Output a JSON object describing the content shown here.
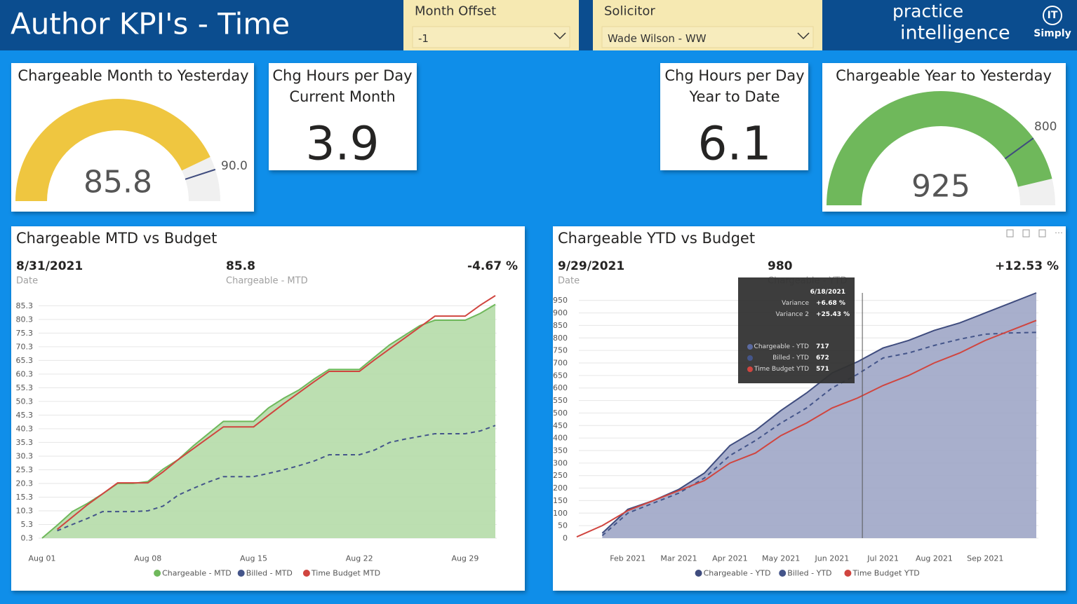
{
  "header": {
    "title": "Author KPI's - Time",
    "logo_line1": "practice",
    "logo_line2": "intelligence",
    "badge_top": "IT",
    "badge_bottom": "Simply"
  },
  "slicers": [
    {
      "label": "Month Offset",
      "value": "-1"
    },
    {
      "label": "Solicitor",
      "value": "Wade Wilson - WW"
    }
  ],
  "cards": [
    {
      "title_lines": [
        "Chg Hours per Day",
        "Current Month"
      ],
      "value": 3.9
    },
    {
      "title_lines": [
        "Chg Hours per Day",
        "Year to Date"
      ],
      "value": 6.1
    }
  ],
  "chart_data": [
    {
      "type": "gauge",
      "title": "Chargeable Month to Yesterday",
      "value": 85.8,
      "target": 90,
      "target_label": "90.0",
      "range": [
        0,
        100
      ],
      "color": "#efc640"
    },
    {
      "type": "gauge",
      "title": "Chargeable Year to Yesterday",
      "value": 925,
      "target": 800,
      "target_label": "800",
      "range": [
        0,
        1000
      ],
      "color": "#6fb85b"
    },
    {
      "type": "line",
      "title": "Chargeable MTD vs Budget",
      "kpi": {
        "date": "8/31/2021",
        "date_label": "Date",
        "value": 85.8,
        "value_label": "Chargeable - MTD",
        "change": "-4.67 %"
      },
      "x": [
        1,
        2,
        3,
        4,
        5,
        6,
        7,
        8,
        9,
        10,
        11,
        12,
        13,
        14,
        15,
        16,
        17,
        18,
        19,
        20,
        21,
        22,
        23,
        24,
        25,
        26,
        27,
        28,
        29,
        30,
        31
      ],
      "xlim": [
        1,
        31
      ],
      "xticks": [
        {
          "value": 1,
          "label": "Aug 01"
        },
        {
          "value": 8,
          "label": "Aug 08"
        },
        {
          "value": 15,
          "label": "Aug 15"
        },
        {
          "value": 22,
          "label": "Aug 22"
        },
        {
          "value": 29,
          "label": "Aug 29"
        }
      ],
      "ylim": [
        0.3,
        90
      ],
      "yticks": [
        0.3,
        5.3,
        10.3,
        15.3,
        20.3,
        25.3,
        30.3,
        35.3,
        40.3,
        45.3,
        50.3,
        55.3,
        60.3,
        65.3,
        70.3,
        75.3,
        80.3,
        85.3
      ],
      "grid": true,
      "series": [
        {
          "name": "Chargeable - MTD",
          "color": "#6fb85b",
          "fill": "#b5dba8",
          "values": [
            0.3,
            5,
            10,
            13,
            16.5,
            20.3,
            20.3,
            21,
            25.5,
            29,
            34,
            38.5,
            43,
            43,
            43,
            48,
            51.5,
            54.5,
            58.5,
            62,
            62,
            62,
            66.5,
            71,
            74.5,
            78,
            80,
            80,
            80,
            82.5,
            85.8
          ]
        },
        {
          "name": "Billed - MTD",
          "color": "#44558a",
          "dashed": true,
          "values": [
            null,
            3,
            5.3,
            7.5,
            10,
            10,
            10,
            10.3,
            12,
            16,
            18.5,
            20.8,
            22.8,
            22.8,
            22.8,
            24,
            25.3,
            26.8,
            28.5,
            30.8,
            30.8,
            30.8,
            32.5,
            35.3,
            36.5,
            37.5,
            38.5,
            38.5,
            38.5,
            39.5,
            41.5
          ]
        },
        {
          "name": "Time Budget MTD",
          "color": "#d0453f",
          "values": [
            null,
            3.5,
            8,
            12.5,
            16.5,
            20.5,
            20.5,
            20.5,
            24.5,
            29,
            33,
            37,
            41,
            41,
            41,
            45.3,
            49.5,
            53.5,
            57.5,
            61.3,
            61.3,
            61.3,
            65.5,
            69.5,
            73.5,
            77.5,
            81.5,
            81.5,
            81.5,
            85.5,
            89
          ]
        }
      ]
    },
    {
      "type": "line",
      "title": "Chargeable YTD vs Budget",
      "kpi": {
        "date": "9/29/2021",
        "date_label": "Date",
        "value": 980,
        "value_label": "Chargeable - YTD",
        "change": "+12.53 %"
      },
      "categories": [
        null,
        null,
        "Feb 2021",
        null,
        "Mar 2021",
        null,
        "Apr 2021",
        null,
        "May 2021",
        null,
        "Jun 2021",
        null,
        "Jul 2021",
        null,
        "Aug 2021",
        null,
        "Sep 2021",
        null,
        null
      ],
      "ylim": [
        0,
        980
      ],
      "yticks": [
        0,
        50,
        100,
        150,
        200,
        250,
        300,
        350,
        400,
        450,
        500,
        550,
        600,
        650,
        700,
        750,
        800,
        850,
        900,
        950
      ],
      "grid": true,
      "series": [
        {
          "name": "Chargeable - YTD",
          "color": "#3f4c7e",
          "fill": "#9ea6c6",
          "values": [
            null,
            20,
            115,
            150,
            195,
            260,
            370,
            430,
            510,
            580,
            660,
            705,
            760,
            790,
            830,
            860,
            900,
            940,
            980
          ]
        },
        {
          "name": "Billed - YTD",
          "color": "#44558a",
          "dashed": true,
          "values": [
            null,
            10,
            100,
            140,
            180,
            240,
            330,
            390,
            460,
            520,
            600,
            655,
            720,
            740,
            770,
            795,
            815,
            820,
            822
          ]
        },
        {
          "name": "Time Budget YTD",
          "color": "#d0453f",
          "values": [
            5,
            50,
            110,
            150,
            190,
            230,
            300,
            340,
            410,
            460,
            520,
            560,
            610,
            650,
            700,
            740,
            790,
            830,
            870
          ]
        }
      ],
      "tooltip": {
        "date": "6/18/2021",
        "rows": [
          {
            "name": "Variance",
            "value": "+6.68 %"
          },
          {
            "name": "Variance 2",
            "value": "+25.43 %"
          }
        ],
        "series_rows": [
          {
            "name": "Chargeable - YTD",
            "value": 717
          },
          {
            "name": "Billed - YTD",
            "value": 672
          },
          {
            "name": "Time Budget YTD",
            "value": 571
          }
        ]
      }
    }
  ]
}
